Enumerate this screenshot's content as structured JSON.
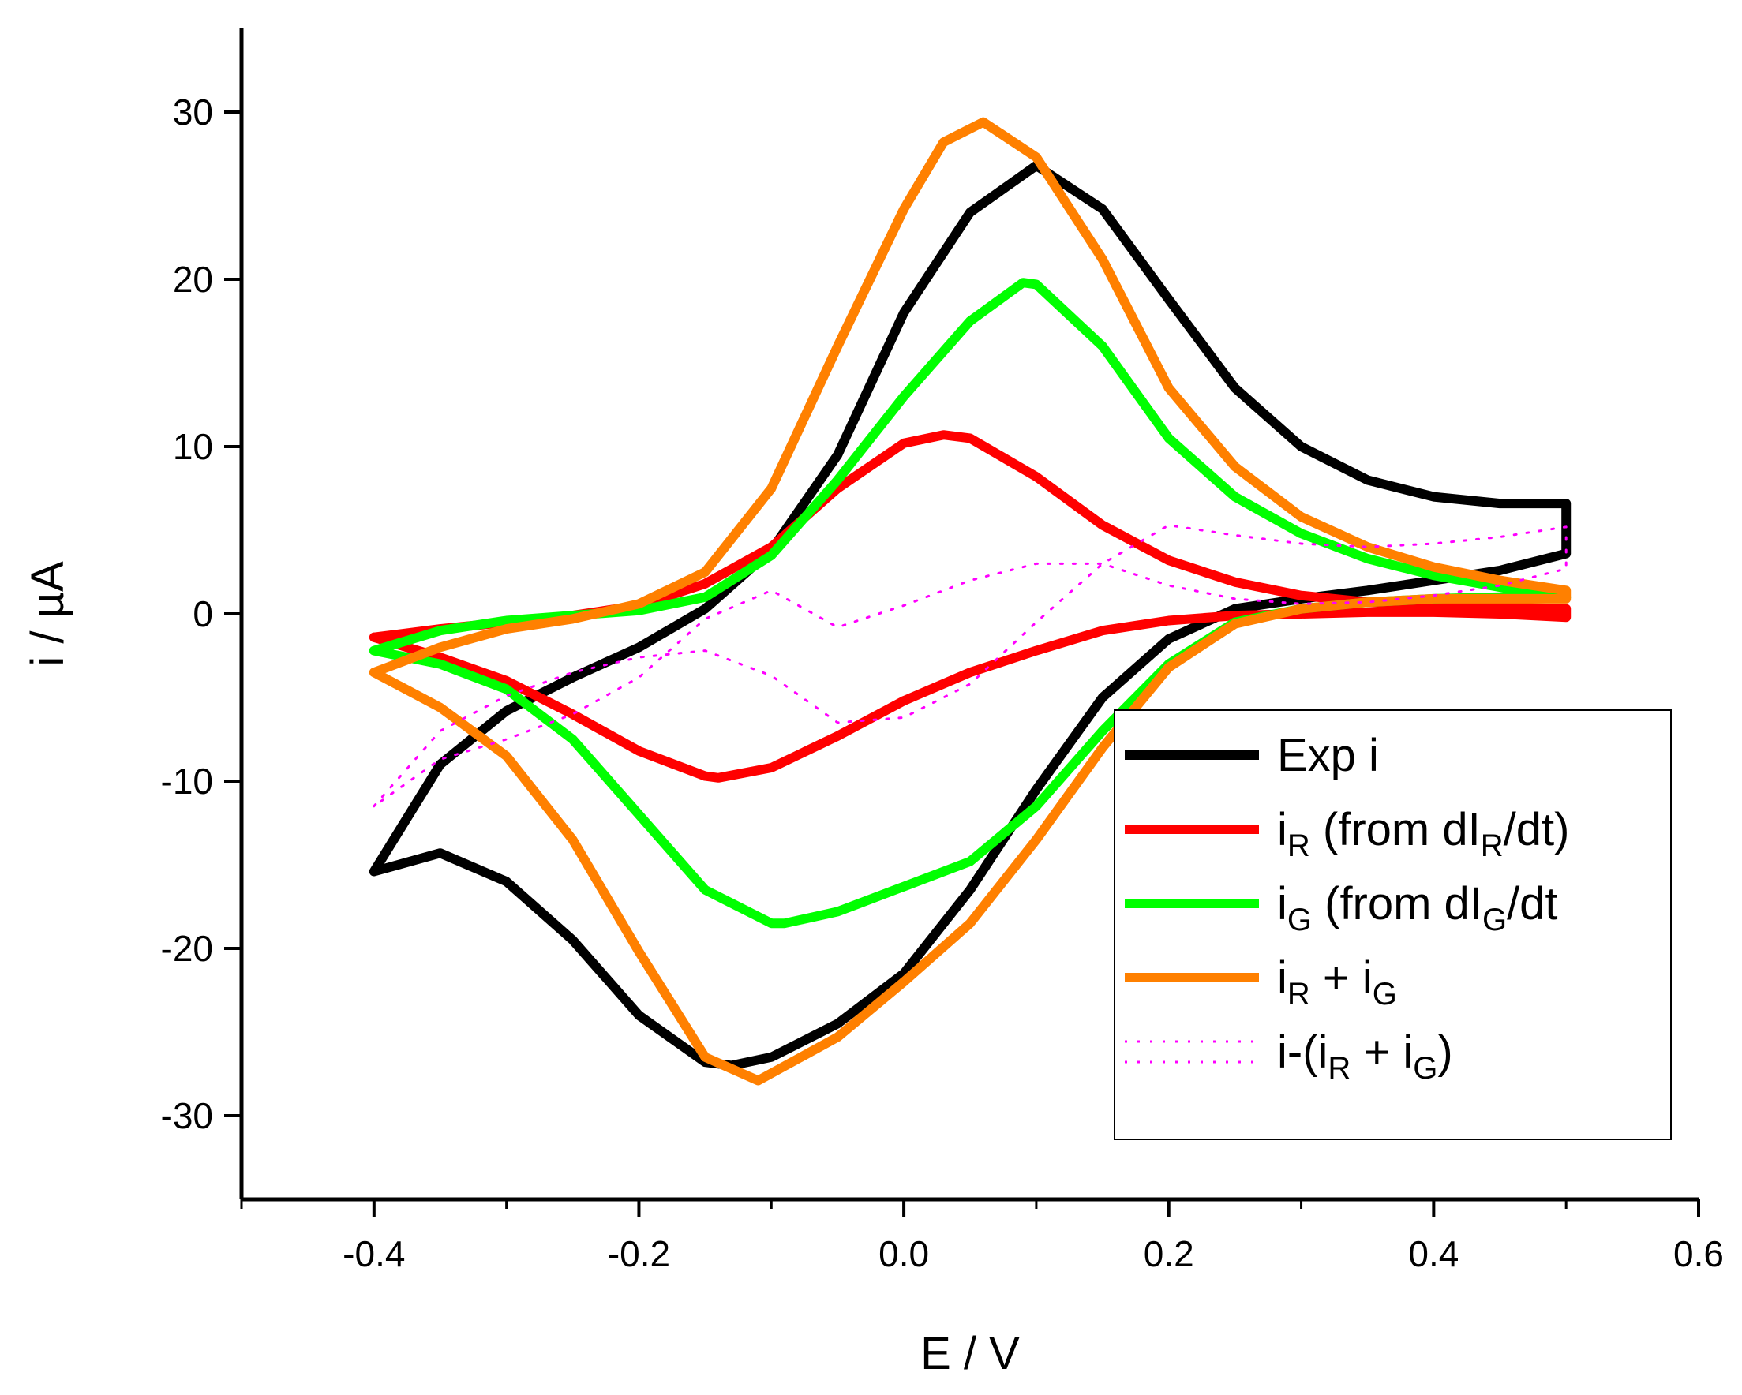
{
  "chart_data": {
    "type": "line",
    "title": "",
    "xlabel": "E / V",
    "ylabel": "i / µA",
    "xlim": [
      -0.5,
      0.6
    ],
    "ylim": [
      -35,
      35
    ],
    "x_ticks": [
      -0.4,
      -0.2,
      0.0,
      0.2,
      0.4,
      0.6
    ],
    "x_tick_labels": [
      "-0.4",
      "-0.2",
      "0.0",
      "0.2",
      "0.4",
      "0.6"
    ],
    "y_ticks": [
      -30,
      -20,
      -10,
      0,
      10,
      20,
      30
    ],
    "y_tick_labels": [
      "-30",
      "-20",
      "-10",
      "0",
      "10",
      "20",
      "30"
    ],
    "grid": false,
    "legend_position": "bottom-right",
    "series": [
      {
        "name": "Exp i",
        "legend_parts": [
          {
            "t": "Exp i"
          }
        ],
        "color": "#000000",
        "style": "solid",
        "x": [
          -0.4,
          -0.35,
          -0.3,
          -0.25,
          -0.2,
          -0.15,
          -0.1,
          -0.05,
          0.0,
          0.05,
          0.1,
          0.15,
          0.2,
          0.25,
          0.3,
          0.35,
          0.4,
          0.45,
          0.5,
          0.5,
          0.45,
          0.4,
          0.35,
          0.3,
          0.25,
          0.2,
          0.15,
          0.1,
          0.05,
          0.0,
          -0.05,
          -0.1,
          -0.13,
          -0.15,
          -0.2,
          -0.25,
          -0.3,
          -0.35,
          -0.4
        ],
        "y": [
          -15.4,
          -9.0,
          -5.8,
          -3.8,
          -2.0,
          0.3,
          3.8,
          9.5,
          18.0,
          24.0,
          26.8,
          24.2,
          18.8,
          13.5,
          10.0,
          8.0,
          7.0,
          6.6,
          6.6,
          3.6,
          2.6,
          2.0,
          1.4,
          0.9,
          0.3,
          -1.5,
          -5.0,
          -10.5,
          -16.5,
          -21.5,
          -24.5,
          -26.5,
          -27.0,
          -26.8,
          -24.0,
          -19.5,
          -16.0,
          -14.3,
          -15.4
        ]
      },
      {
        "name": "iR (from dIR/dt)",
        "legend_parts": [
          {
            "t": "i"
          },
          {
            "t": "R",
            "sub": true
          },
          {
            "t": " (from dI"
          },
          {
            "t": "R",
            "sub": true
          },
          {
            "t": "/dt)"
          }
        ],
        "color": "#ff0000",
        "style": "solid",
        "x": [
          -0.4,
          -0.35,
          -0.3,
          -0.25,
          -0.2,
          -0.15,
          -0.1,
          -0.05,
          0.0,
          0.03,
          0.05,
          0.1,
          0.15,
          0.2,
          0.25,
          0.3,
          0.35,
          0.4,
          0.45,
          0.5,
          0.5,
          0.45,
          0.4,
          0.35,
          0.3,
          0.25,
          0.2,
          0.15,
          0.1,
          0.05,
          0.0,
          -0.05,
          -0.1,
          -0.14,
          -0.15,
          -0.2,
          -0.25,
          -0.3,
          -0.35,
          -0.4
        ],
        "y": [
          -1.4,
          -0.9,
          -0.5,
          -0.1,
          0.5,
          1.8,
          4.0,
          7.5,
          10.2,
          10.7,
          10.5,
          8.2,
          5.3,
          3.2,
          1.9,
          1.1,
          0.7,
          0.5,
          0.4,
          0.3,
          -0.2,
          0.0,
          0.1,
          0.1,
          0.0,
          -0.1,
          -0.4,
          -1.0,
          -2.2,
          -3.5,
          -5.2,
          -7.3,
          -9.2,
          -9.8,
          -9.7,
          -8.2,
          -6.0,
          -4.0,
          -2.6,
          -1.4
        ]
      },
      {
        "name": "iG (from dIG/dt",
        "legend_parts": [
          {
            "t": "i"
          },
          {
            "t": "G",
            "sub": true
          },
          {
            "t": " (from dI"
          },
          {
            "t": "G",
            "sub": true
          },
          {
            "t": "/dt"
          }
        ],
        "color": "#00ff00",
        "style": "solid",
        "x": [
          -0.4,
          -0.35,
          -0.3,
          -0.25,
          -0.2,
          -0.15,
          -0.1,
          -0.05,
          0.0,
          0.05,
          0.09,
          0.1,
          0.15,
          0.2,
          0.25,
          0.3,
          0.35,
          0.4,
          0.45,
          0.5,
          0.5,
          0.45,
          0.4,
          0.35,
          0.3,
          0.25,
          0.2,
          0.15,
          0.1,
          0.05,
          0.0,
          -0.05,
          -0.09,
          -0.1,
          -0.15,
          -0.2,
          -0.25,
          -0.3,
          -0.35,
          -0.4
        ],
        "y": [
          -2.2,
          -1.0,
          -0.4,
          -0.1,
          0.2,
          1.0,
          3.5,
          8.0,
          13.0,
          17.5,
          19.8,
          19.7,
          16.0,
          10.5,
          7.0,
          4.8,
          3.3,
          2.3,
          1.6,
          1.0,
          1.0,
          1.0,
          0.9,
          0.7,
          0.3,
          -0.5,
          -3.0,
          -7.0,
          -11.5,
          -14.8,
          -16.3,
          -17.8,
          -18.5,
          -18.5,
          -16.5,
          -12.0,
          -7.5,
          -4.5,
          -3.0,
          -2.2
        ]
      },
      {
        "name": "iR + iG",
        "legend_parts": [
          {
            "t": "i"
          },
          {
            "t": "R",
            "sub": true
          },
          {
            "t": " + i"
          },
          {
            "t": "G",
            "sub": true
          }
        ],
        "color": "#ff8000",
        "style": "solid",
        "x": [
          -0.4,
          -0.35,
          -0.3,
          -0.25,
          -0.2,
          -0.15,
          -0.1,
          -0.05,
          0.0,
          0.03,
          0.06,
          0.1,
          0.15,
          0.2,
          0.25,
          0.3,
          0.35,
          0.4,
          0.45,
          0.5,
          0.5,
          0.45,
          0.4,
          0.35,
          0.3,
          0.25,
          0.2,
          0.15,
          0.1,
          0.05,
          0.0,
          -0.05,
          -0.11,
          -0.15,
          -0.2,
          -0.25,
          -0.3,
          -0.35,
          -0.4
        ],
        "y": [
          -3.5,
          -2.0,
          -0.9,
          -0.3,
          0.6,
          2.5,
          7.5,
          16.0,
          24.2,
          28.2,
          29.4,
          27.3,
          21.2,
          13.5,
          8.8,
          5.8,
          4.0,
          2.8,
          2.0,
          1.4,
          0.9,
          0.9,
          0.9,
          0.7,
          0.3,
          -0.6,
          -3.2,
          -8.0,
          -13.5,
          -18.5,
          -22.0,
          -25.3,
          -27.9,
          -26.5,
          -20.2,
          -13.5,
          -8.5,
          -5.6,
          -3.5
        ]
      },
      {
        "name": "i-(iR + iG)",
        "legend_parts": [
          {
            "t": "i-(i"
          },
          {
            "t": "R",
            "sub": true
          },
          {
            "t": " + i"
          },
          {
            "t": "G",
            "sub": true
          },
          {
            "t": ")"
          }
        ],
        "color": "#ff00ff",
        "style": "dotted",
        "x": [
          -0.4,
          -0.35,
          -0.3,
          -0.25,
          -0.2,
          -0.15,
          -0.1,
          -0.05,
          0.0,
          0.05,
          0.1,
          0.15,
          0.2,
          0.25,
          0.3,
          0.35,
          0.4,
          0.45,
          0.5,
          0.5,
          0.45,
          0.4,
          0.35,
          0.3,
          0.25,
          0.2,
          0.15,
          0.1,
          0.05,
          0.0,
          -0.05,
          -0.1,
          -0.15,
          -0.2,
          -0.25,
          -0.3,
          -0.35,
          -0.4
        ],
        "y": [
          -11.5,
          -7.0,
          -4.9,
          -3.5,
          -2.6,
          -2.2,
          -3.7,
          -6.5,
          -6.2,
          -4.2,
          -0.5,
          3.0,
          5.3,
          4.7,
          4.2,
          4.0,
          4.2,
          4.6,
          5.2,
          2.7,
          1.7,
          1.1,
          0.7,
          0.6,
          0.9,
          1.7,
          3.0,
          3.0,
          2.0,
          0.5,
          -0.8,
          1.4,
          -0.3,
          -3.8,
          -6.0,
          -7.5,
          -8.7,
          -11.5
        ]
      }
    ]
  }
}
